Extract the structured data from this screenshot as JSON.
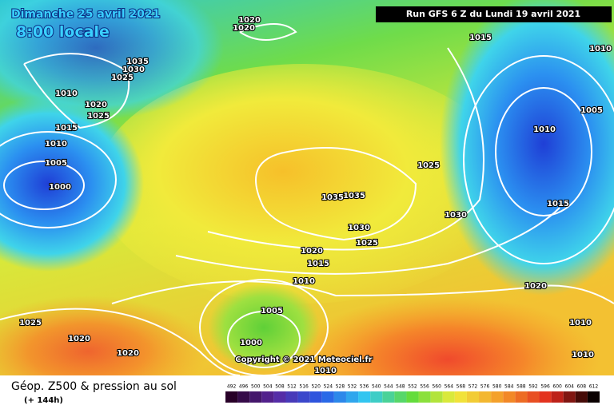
{
  "header": {
    "date": "Dimanche 25 avril 2021",
    "time": "8:00 locale",
    "run": "Run GFS 6 Z du Lundi 19 avril 2021"
  },
  "isobars": [
    1020,
    1020,
    1035,
    1030,
    1025,
    1010,
    1020,
    1025,
    1015,
    1010,
    1005,
    1000,
    1015,
    1010,
    1005,
    1010,
    1025,
    1035,
    1035,
    1015,
    1030,
    1030,
    1025,
    1020,
    1015,
    1010,
    1020,
    1005,
    1025,
    1010,
    1020,
    1000,
    1020,
    1010,
    1010
  ],
  "copyright": "Copyright © 2021 Meteociel.fr",
  "footer": {
    "title": "Géop. Z500 & pression au sol",
    "lead": "(+ 144h)"
  },
  "scale": [
    492,
    496,
    500,
    504,
    508,
    512,
    516,
    520,
    524,
    528,
    532,
    536,
    540,
    544,
    548,
    552,
    556,
    560,
    564,
    568,
    572,
    576,
    580,
    584,
    588,
    592,
    596,
    600,
    604,
    608,
    612
  ]
}
